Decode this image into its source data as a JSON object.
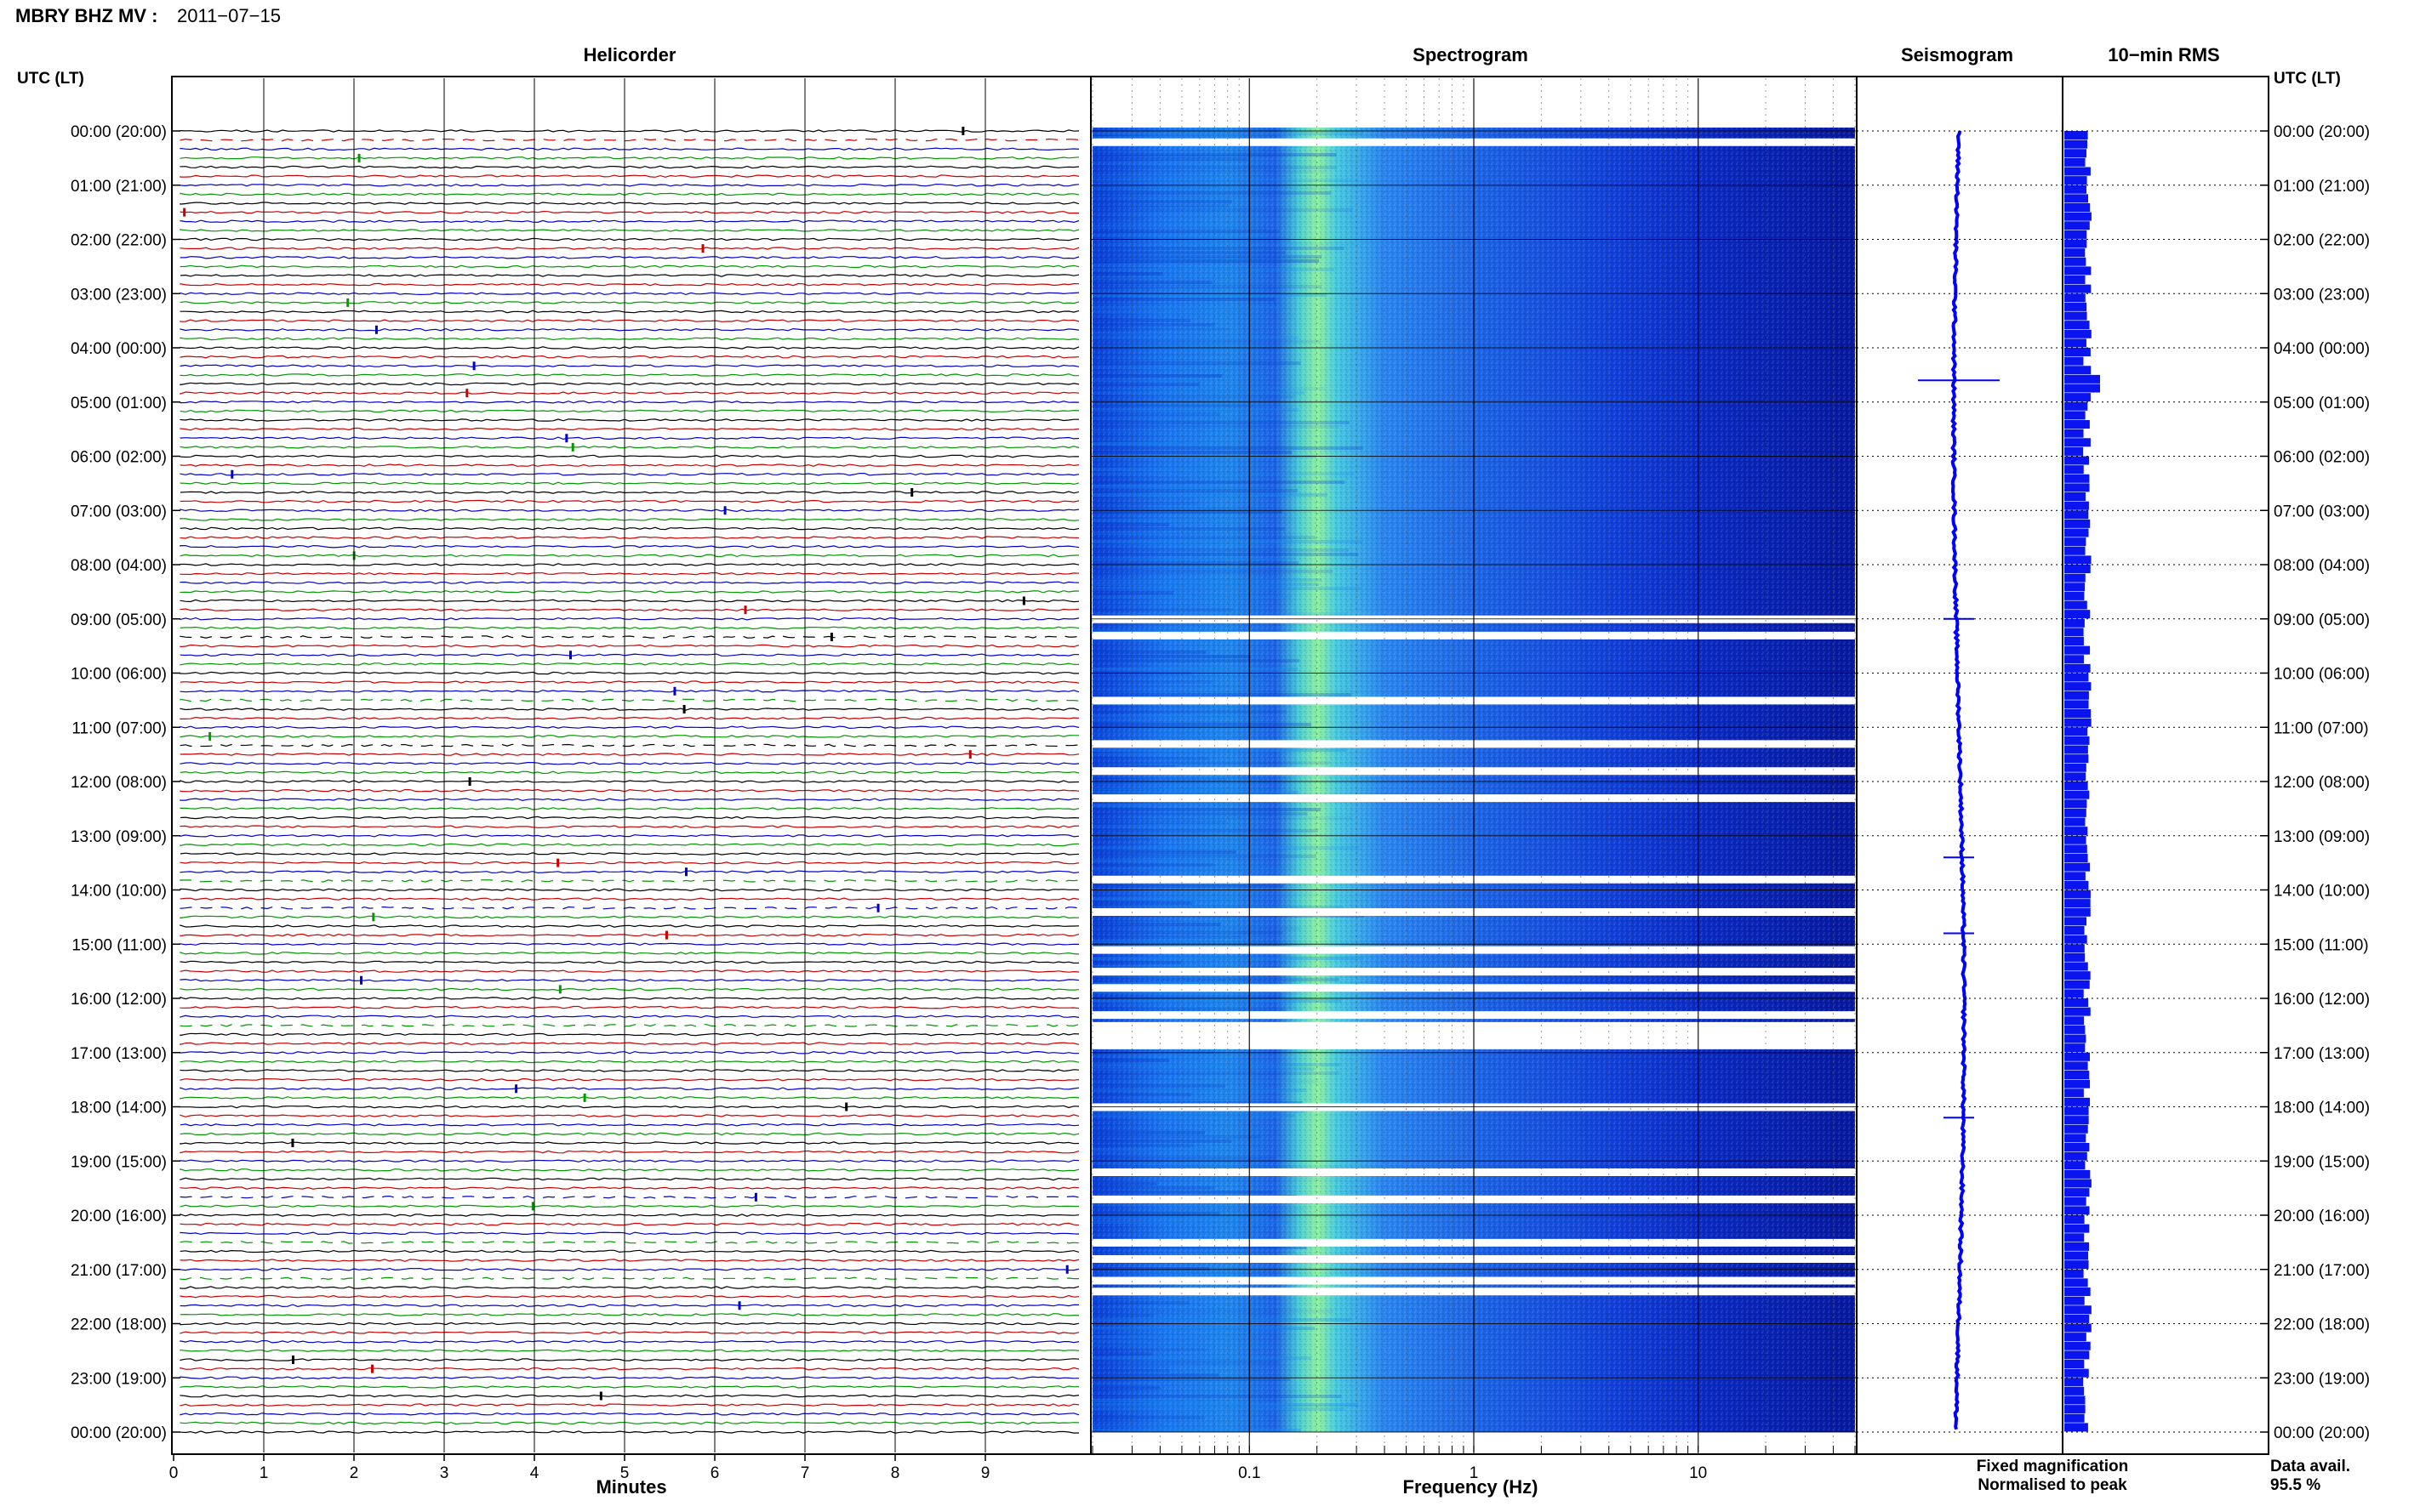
{
  "header": {
    "station": "MBRY BHZ MV : ",
    "date": "2011−07−15"
  },
  "panels": {
    "helicorder_title": "Helicorder",
    "spectrogram_title": "Spectrogram",
    "seismogram_title": "Seismogram",
    "rms_title": "10−min RMS"
  },
  "axes": {
    "left_label": "UTC (LT)",
    "right_label": "UTC (LT)",
    "minutes_label": "Minutes",
    "frequency_label": "Frequency (Hz)"
  },
  "legend": {
    "fixed": "Fixed magnification",
    "normalised": "Normalised to peak",
    "fixed_color": "#0000ff",
    "normalised_color": "#ff0000"
  },
  "availability": {
    "label": "Data avail.",
    "value": "95.5 %"
  },
  "chart_data": {
    "type": "heatmap",
    "helicorder": {
      "x_unit": "Minutes",
      "xlim": [
        0,
        10
      ],
      "x_ticks": [
        "0",
        "1",
        "2",
        "3",
        "4",
        "5",
        "6",
        "7",
        "8",
        "9"
      ],
      "lines_per_hour": 6,
      "trace_colors": [
        "#000000",
        "#cc0000",
        "#0000cc",
        "#009900"
      ],
      "gap_hours": [
        0.2,
        9.3,
        10.5,
        11.3,
        13.8,
        14.4,
        16.5,
        19.7,
        20.5,
        21.2
      ]
    },
    "spectrogram": {
      "x_unit": "Frequency (Hz)",
      "x_scale": "log",
      "xlim": [
        0.02,
        50
      ],
      "x_ticks": [
        "0.1",
        "1",
        "10"
      ],
      "dominant_band_hz": [
        0.2,
        0.3
      ],
      "gap_hours": [
        0.2,
        9.0,
        9.3,
        10.5,
        11.3,
        11.8,
        12.3,
        13.8,
        14.4,
        15.1,
        15.5,
        15.8,
        16.3,
        16.5,
        16.6,
        18.0,
        19.2,
        19.7,
        20.5,
        20.8,
        21.2,
        21.4
      ]
    },
    "seismogram": {
      "event_hours": [
        4.6,
        9.0,
        13.4,
        14.8,
        18.2
      ]
    },
    "rms": {
      "peak_hour": 4.6
    },
    "y_ticks": [
      "00:00 (20:00)",
      "01:00 (21:00)",
      "02:00 (22:00)",
      "03:00 (23:00)",
      "04:00 (00:00)",
      "05:00 (01:00)",
      "06:00 (02:00)",
      "07:00 (03:00)",
      "08:00 (04:00)",
      "09:00 (05:00)",
      "10:00 (06:00)",
      "11:00 (07:00)",
      "12:00 (08:00)",
      "13:00 (09:00)",
      "14:00 (10:00)",
      "15:00 (11:00)",
      "16:00 (12:00)",
      "17:00 (13:00)",
      "18:00 (14:00)",
      "19:00 (15:00)",
      "20:00 (16:00)",
      "21:00 (17:00)",
      "22:00 (18:00)",
      "23:00 (19:00)",
      "00:00 (20:00)"
    ]
  }
}
